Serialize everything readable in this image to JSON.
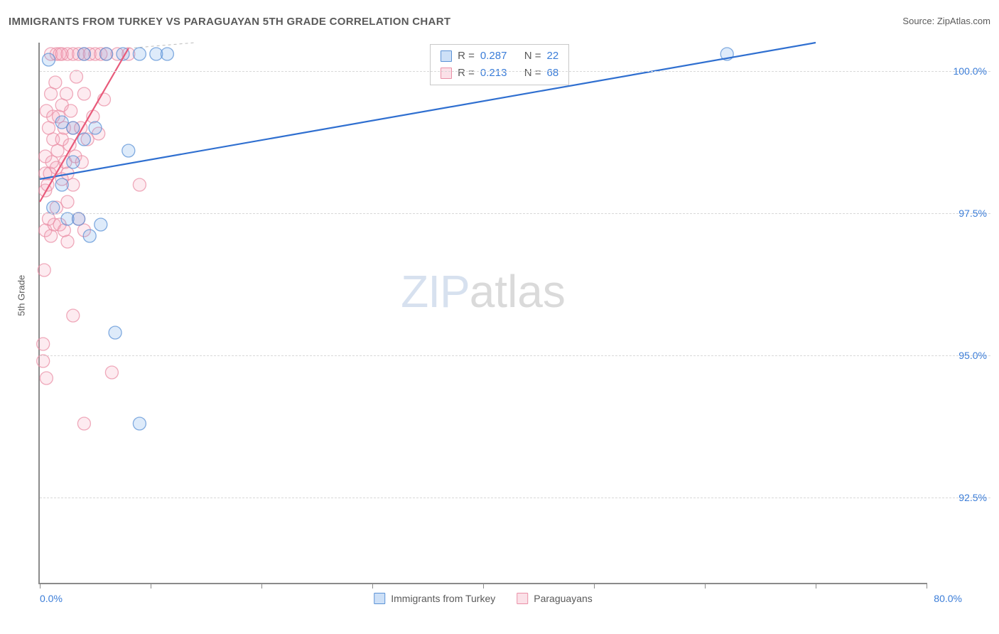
{
  "title": "IMMIGRANTS FROM TURKEY VS PARAGUAYAN 5TH GRADE CORRELATION CHART",
  "source_label": "Source:",
  "source_name": "ZipAtlas.com",
  "y_axis_label": "5th Grade",
  "watermark_a": "ZIP",
  "watermark_b": "atlas",
  "chart": {
    "type": "scatter",
    "xlim": [
      0,
      80
    ],
    "ylim": [
      91,
      100.5
    ],
    "x_ticks": [
      0,
      10,
      20,
      30,
      40,
      50,
      60,
      70,
      80
    ],
    "y_gridlines": [
      92.5,
      95.0,
      97.5,
      100.0
    ],
    "y_tick_labels": [
      "92.5%",
      "95.0%",
      "97.5%",
      "100.0%"
    ],
    "x_min_label": "0.0%",
    "x_max_label": "80.0%",
    "background_color": "#ffffff",
    "grid_color": "#d8d8d8",
    "axis_color": "#8b8b8b",
    "tick_label_color": "#3b7dd8",
    "marker_radius": 9,
    "marker_fill_opacity": 0.22,
    "marker_stroke_opacity": 0.75,
    "marker_stroke_width": 1.3,
    "line_width": 2.2
  },
  "series": [
    {
      "name": "Immigrants from Turkey",
      "color": "#6aa3e8",
      "stroke": "#5b92d6",
      "line_color": "#2f6fd0",
      "R": "0.287",
      "N": "22",
      "regression": {
        "x1": 0,
        "y1": 98.1,
        "x2": 70,
        "y2": 100.5
      },
      "points": [
        [
          0.8,
          100.2
        ],
        [
          1.2,
          97.6
        ],
        [
          2.0,
          98.0
        ],
        [
          2.0,
          99.1
        ],
        [
          2.5,
          97.4
        ],
        [
          3.0,
          98.4
        ],
        [
          3.0,
          99.0
        ],
        [
          3.5,
          97.4
        ],
        [
          4.0,
          100.3
        ],
        [
          4.0,
          98.8
        ],
        [
          4.5,
          97.1
        ],
        [
          5.0,
          99.0
        ],
        [
          5.5,
          97.3
        ],
        [
          6.0,
          100.3
        ],
        [
          6.8,
          95.4
        ],
        [
          7.5,
          100.3
        ],
        [
          8.0,
          98.6
        ],
        [
          9.0,
          100.3
        ],
        [
          9.0,
          93.8
        ],
        [
          10.5,
          100.3
        ],
        [
          11.5,
          100.3
        ],
        [
          62.0,
          100.3
        ]
      ]
    },
    {
      "name": "Paraguayans",
      "color": "#f4a6b9",
      "stroke": "#ea8fa6",
      "line_color": "#e85a7a",
      "R": "0.213",
      "N": "68",
      "regression": {
        "x1": 0,
        "y1": 97.7,
        "x2": 8,
        "y2": 100.4
      },
      "points": [
        [
          0.3,
          94.9
        ],
        [
          0.3,
          95.2
        ],
        [
          0.4,
          96.5
        ],
        [
          0.5,
          97.2
        ],
        [
          0.5,
          97.9
        ],
        [
          0.5,
          98.2
        ],
        [
          0.5,
          98.5
        ],
        [
          0.6,
          94.6
        ],
        [
          0.6,
          99.3
        ],
        [
          0.7,
          98.0
        ],
        [
          0.8,
          97.4
        ],
        [
          0.8,
          99.0
        ],
        [
          0.9,
          98.2
        ],
        [
          1.0,
          97.1
        ],
        [
          1.0,
          99.6
        ],
        [
          1.0,
          100.3
        ],
        [
          1.1,
          98.4
        ],
        [
          1.2,
          98.8
        ],
        [
          1.2,
          99.2
        ],
        [
          1.3,
          97.3
        ],
        [
          1.4,
          99.8
        ],
        [
          1.5,
          97.6
        ],
        [
          1.5,
          98.3
        ],
        [
          1.5,
          100.3
        ],
        [
          1.6,
          98.6
        ],
        [
          1.7,
          99.2
        ],
        [
          1.8,
          97.3
        ],
        [
          1.8,
          100.3
        ],
        [
          2.0,
          98.1
        ],
        [
          2.0,
          98.8
        ],
        [
          2.0,
          99.4
        ],
        [
          2.0,
          100.3
        ],
        [
          2.2,
          97.2
        ],
        [
          2.2,
          99.0
        ],
        [
          2.3,
          98.4
        ],
        [
          2.4,
          99.6
        ],
        [
          2.5,
          97.0
        ],
        [
          2.5,
          97.7
        ],
        [
          2.5,
          98.2
        ],
        [
          2.5,
          100.3
        ],
        [
          2.7,
          98.7
        ],
        [
          2.8,
          99.3
        ],
        [
          3.0,
          95.7
        ],
        [
          3.0,
          98.0
        ],
        [
          3.0,
          99.0
        ],
        [
          3.0,
          100.3
        ],
        [
          3.2,
          98.5
        ],
        [
          3.3,
          99.9
        ],
        [
          3.5,
          97.4
        ],
        [
          3.5,
          100.3
        ],
        [
          3.7,
          99.0
        ],
        [
          3.8,
          98.4
        ],
        [
          4.0,
          93.8
        ],
        [
          4.0,
          97.2
        ],
        [
          4.0,
          99.6
        ],
        [
          4.0,
          100.3
        ],
        [
          4.3,
          98.8
        ],
        [
          4.5,
          100.3
        ],
        [
          4.8,
          99.2
        ],
        [
          5.0,
          100.3
        ],
        [
          5.3,
          98.9
        ],
        [
          5.5,
          100.3
        ],
        [
          5.8,
          99.5
        ],
        [
          6.0,
          100.3
        ],
        [
          6.5,
          94.7
        ],
        [
          7.0,
          100.3
        ],
        [
          8.0,
          100.3
        ],
        [
          9.0,
          98.0
        ]
      ]
    }
  ],
  "legend": {
    "label_a": "Immigrants from Turkey",
    "label_b": "Paraguayans"
  },
  "stats_labels": {
    "R": "R =",
    "N": "N ="
  }
}
